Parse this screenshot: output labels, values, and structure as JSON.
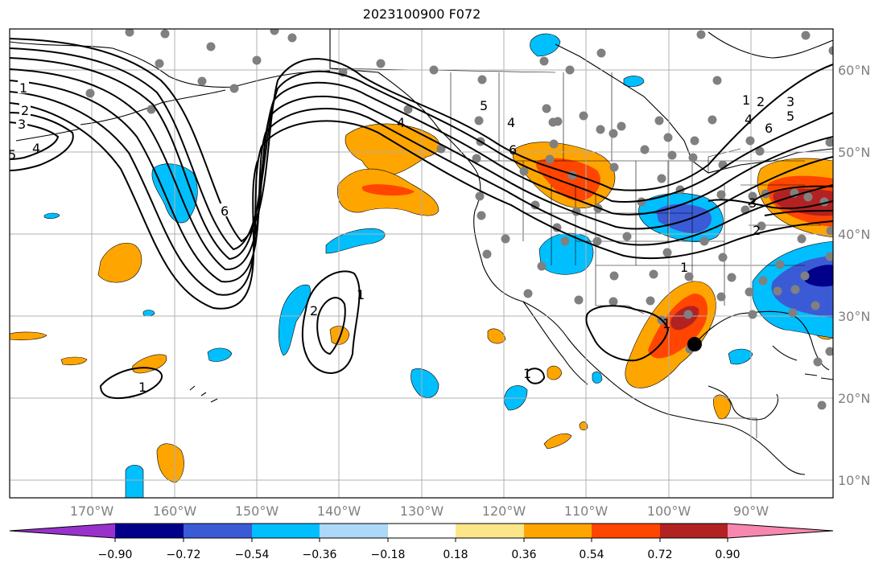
{
  "title": "2023100900 F072",
  "lon_ticks": [
    "170°W",
    "160°W",
    "150°W",
    "140°W",
    "130°W",
    "120°W",
    "110°W",
    "100°W",
    "90°W"
  ],
  "lat_ticks": [
    "60°N",
    "50°N",
    "40°N",
    "30°N",
    "20°N",
    "10°N"
  ],
  "colorbar": {
    "labels": [
      "−0.90",
      "−0.72",
      "−0.54",
      "−0.36",
      "−0.18",
      "0.18",
      "0.36",
      "0.54",
      "0.72",
      "0.90"
    ],
    "colors": [
      "#9932cc",
      "#00008b",
      "#3b5bd6",
      "#00bfff",
      "#add8f7",
      "#ffffff",
      "#fde68a",
      "#ffa500",
      "#ff4500",
      "#b22222",
      "#f887b0"
    ]
  },
  "contour_labels": {
    "c1": "1",
    "c2": "2",
    "c3": "3",
    "c4": "4",
    "c5": "5",
    "c6": "6"
  },
  "colors": {
    "stations": "#808080",
    "grid": "#b0b0b0",
    "marker": "#000000"
  }
}
